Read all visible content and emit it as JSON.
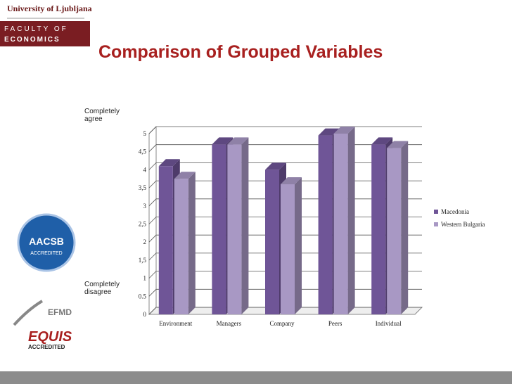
{
  "branding": {
    "university": "University of Ljubljana",
    "faculty_line1": "FACULTY OF",
    "faculty_line2": "ECONOMICS",
    "aacsb": "AACSB",
    "aacsb_sub": "ACCREDITED",
    "efmd": "EFMD",
    "equis": "EQUIS",
    "equis_sub": "ACCREDITED"
  },
  "chart_data": {
    "type": "bar",
    "title": "Comparison of Grouped Variables",
    "annotations": [
      "Completely agree",
      "Completely disagree"
    ],
    "categories": [
      "Environment",
      "Managers",
      "Company",
      "Peers",
      "Individual"
    ],
    "series": [
      {
        "name": "Macedonia",
        "color": "#6f5597",
        "values": [
          4.1,
          4.7,
          4.0,
          4.95,
          4.7
        ]
      },
      {
        "name": "Western Bulgaria",
        "color": "#a898c4",
        "values": [
          3.75,
          4.7,
          3.6,
          5.0,
          4.6
        ]
      }
    ],
    "ylim": [
      0,
      5
    ],
    "yticks": [
      0,
      {
        "value": 0.5,
        "label": "0.5"
      },
      1,
      {
        "value": 1.5,
        "label": "1,5"
      },
      2,
      {
        "value": 2.5,
        "label": "2,5"
      },
      3,
      {
        "value": 3.5,
        "label": "3,5"
      },
      4,
      {
        "value": 4.5,
        "label": "4,5"
      },
      5
    ],
    "grid": true,
    "legend": "right"
  }
}
